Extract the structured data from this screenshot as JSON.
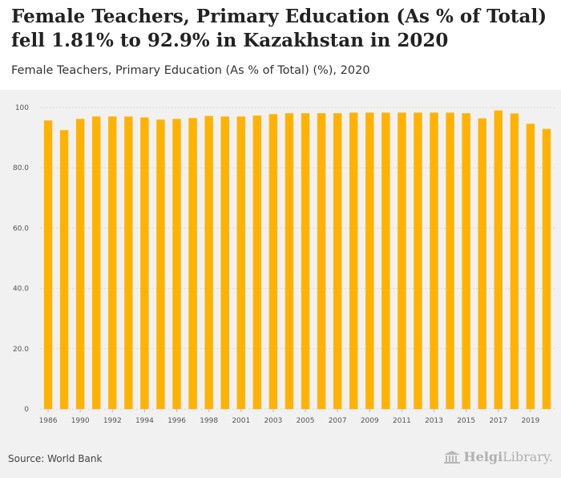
{
  "header": {
    "title_line1": "Female Teachers, Primary Education (As % of Total)",
    "title_line2": "fell 1.81% to 92.9% in Kazakhstan in 2020",
    "subtitle": "Female Teachers, Primary Education (As % of Total) (%), 2020"
  },
  "footer": {
    "source": "Source: World Bank",
    "logo_bold": "Helgi",
    "logo_rest": "Library."
  },
  "colors": {
    "bar": "#FFB300",
    "grid": "#d8d8d8"
  },
  "chart_data": {
    "type": "bar",
    "title": "",
    "xlabel": "",
    "ylabel": "",
    "ylim": [
      0,
      100
    ],
    "yticks": [
      {
        "value": 0,
        "label": "0"
      },
      {
        "value": 20,
        "label": "20.0"
      },
      {
        "value": 40,
        "label": "40.0"
      },
      {
        "value": 60,
        "label": "60.0"
      },
      {
        "value": 80,
        "label": "80.0"
      },
      {
        "value": 100,
        "label": "100"
      }
    ],
    "grid": true,
    "categories": [
      "1986",
      "1989",
      "1990",
      "1991",
      "1992",
      "1993",
      "1994",
      "1995",
      "1996",
      "1997",
      "1998",
      "1999",
      "2001",
      "2002",
      "2003",
      "2004",
      "2005",
      "2006",
      "2007",
      "2008",
      "2009",
      "2010",
      "2011",
      "2012",
      "2013",
      "2014",
      "2015",
      "2016",
      "2017",
      "2018",
      "2019",
      "2020"
    ],
    "tick_labels_shown": [
      "1986",
      "1990",
      "1992",
      "1994",
      "1996",
      "1998",
      "2001",
      "2003",
      "2005",
      "2007",
      "2009",
      "2011",
      "2013",
      "2015",
      "2017",
      "2019"
    ],
    "values": [
      95.7,
      92.5,
      96.2,
      97.0,
      97.0,
      97.0,
      96.7,
      96.0,
      96.2,
      96.5,
      97.2,
      97.0,
      97.0,
      97.3,
      97.8,
      98.1,
      98.1,
      98.1,
      98.1,
      98.3,
      98.3,
      98.3,
      98.3,
      98.3,
      98.3,
      98.3,
      98.1,
      96.4,
      99.0,
      98.0,
      94.6,
      92.9
    ]
  }
}
